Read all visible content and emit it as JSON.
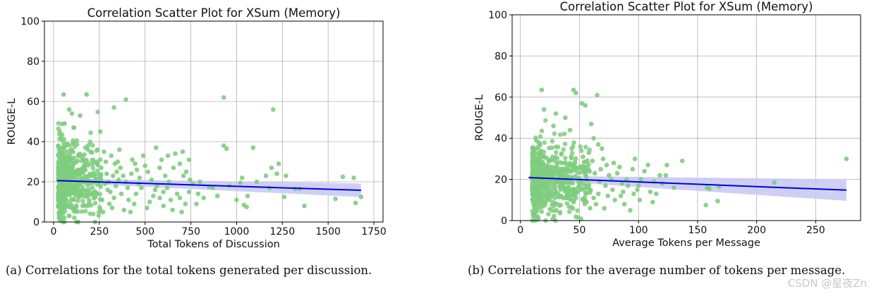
{
  "chart_data": [
    {
      "type": "scatter",
      "title": "Correlation Scatter Plot for XSum (Memory)",
      "xlabel": "Total Tokens of Discussion",
      "ylabel": "ROUGE-L",
      "xlim": [
        -50,
        1800
      ],
      "ylim": [
        0,
        100
      ],
      "xticks": [
        0,
        250,
        500,
        750,
        1000,
        1250,
        1500,
        1750
      ],
      "yticks": [
        0,
        20,
        40,
        60,
        80,
        100
      ],
      "grid": true,
      "point_color": "#7fcc7f",
      "regression": {
        "color": "#0000dd",
        "band_color": "#c7c7f5",
        "start": [
          20,
          20.6
        ],
        "end": [
          1680,
          15.8
        ],
        "band_half_start": 1.0,
        "band_half_end": 3.4
      },
      "cluster": {
        "x_range": [
          25,
          260
        ],
        "y_center": 21,
        "y_spread": 9,
        "count": 620
      },
      "points": [
        [
          55,
          63.5
        ],
        [
          180,
          63.5
        ],
        [
          395,
          61
        ],
        [
          930,
          62
        ],
        [
          1200,
          56
        ],
        [
          330,
          57
        ],
        [
          85,
          56
        ],
        [
          100,
          54
        ],
        [
          145,
          53
        ],
        [
          60,
          49
        ],
        [
          110,
          47
        ],
        [
          255,
          45
        ],
        [
          930,
          38
        ],
        [
          945,
          36.5
        ],
        [
          1090,
          37
        ],
        [
          1190,
          27
        ],
        [
          1230,
          29
        ],
        [
          1270,
          23
        ],
        [
          1320,
          16.5
        ],
        [
          1345,
          16.5
        ],
        [
          1540,
          11.5
        ],
        [
          1580,
          22.5
        ],
        [
          1640,
          22
        ],
        [
          1680,
          12.5
        ],
        [
          1650,
          9.5
        ],
        [
          1040,
          8.5
        ],
        [
          1055,
          7.5
        ],
        [
          1060,
          13
        ],
        [
          1370,
          8
        ],
        [
          1260,
          12.5
        ],
        [
          1020,
          19.5
        ],
        [
          1030,
          22
        ],
        [
          870,
          17
        ],
        [
          895,
          13
        ],
        [
          705,
          35
        ],
        [
          665,
          34
        ],
        [
          625,
          33
        ],
        [
          560,
          37
        ],
        [
          590,
          31
        ],
        [
          655,
          27
        ],
        [
          710,
          23
        ],
        [
          745,
          21
        ],
        [
          760,
          19
        ],
        [
          790,
          14
        ],
        [
          820,
          12
        ],
        [
          780,
          9
        ],
        [
          740,
          15
        ],
        [
          720,
          9
        ],
        [
          700,
          5
        ],
        [
          650,
          6
        ],
        [
          640,
          11
        ],
        [
          600,
          8
        ],
        [
          580,
          12
        ],
        [
          555,
          16
        ],
        [
          535,
          21
        ],
        [
          515,
          25
        ],
        [
          500,
          28
        ],
        [
          490,
          33
        ],
        [
          470,
          22
        ],
        [
          450,
          14
        ],
        [
          440,
          9
        ],
        [
          420,
          5
        ],
        [
          405,
          17
        ],
        [
          395,
          20
        ],
        [
          380,
          23
        ],
        [
          365,
          27
        ],
        [
          350,
          30
        ],
        [
          340,
          18
        ],
        [
          330,
          12
        ],
        [
          320,
          7
        ],
        [
          310,
          15
        ],
        [
          300,
          20
        ],
        [
          290,
          24
        ],
        [
          285,
          30
        ],
        [
          275,
          35
        ],
        [
          265,
          11
        ],
        [
          260,
          27
        ],
        [
          690,
          29
        ],
        [
          610,
          23
        ],
        [
          565,
          18
        ],
        [
          525,
          10
        ],
        [
          480,
          17
        ],
        [
          455,
          26
        ],
        [
          430,
          31
        ],
        [
          410,
          11
        ],
        [
          385,
          6
        ],
        [
          370,
          14
        ],
        [
          355,
          21
        ],
        [
          345,
          25
        ],
        [
          335,
          29
        ],
        [
          315,
          33
        ],
        [
          305,
          9
        ],
        [
          295,
          16
        ],
        [
          280,
          19
        ],
        [
          270,
          5
        ],
        [
          620,
          17
        ],
        [
          675,
          14
        ],
        [
          725,
          25
        ],
        [
          800,
          20
        ],
        [
          850,
          17.5
        ],
        [
          960,
          18
        ],
        [
          1000,
          11
        ],
        [
          1110,
          20
        ],
        [
          1160,
          23
        ],
        [
          1220,
          24
        ],
        [
          1180,
          17
        ],
        [
          580,
          27
        ],
        [
          545,
          13
        ],
        [
          510,
          7
        ],
        [
          465,
          19
        ],
        [
          425,
          24
        ],
        [
          360,
          36
        ],
        [
          740,
          31
        ],
        [
          690,
          12
        ],
        [
          630,
          20
        ],
        [
          600,
          15
        ],
        [
          445,
          29
        ],
        [
          325,
          23
        ]
      ]
    },
    {
      "type": "scatter",
      "title": "Correlation Scatter Plot for XSum (Memory)",
      "xlabel": "Average Tokens per Message",
      "ylabel": "ROUGE-L",
      "xlim": [
        -7,
        288
      ],
      "ylim": [
        0,
        100
      ],
      "xticks": [
        0,
        50,
        100,
        150,
        200,
        250
      ],
      "yticks": [
        0,
        20,
        40,
        60,
        80,
        100
      ],
      "grid": true,
      "point_color": "#7fcc7f",
      "regression": {
        "color": "#0000dd",
        "band_color": "#c7c7f5",
        "start": [
          7,
          20.9
        ],
        "end": [
          276,
          14.8
        ],
        "band_half_start": 1.0,
        "band_half_end": 5.2
      },
      "cluster": {
        "x_range": [
          10,
          60
        ],
        "y_center": 20,
        "y_spread": 9,
        "count": 620
      },
      "points": [
        [
          18,
          63.5
        ],
        [
          45,
          63.5
        ],
        [
          47,
          62
        ],
        [
          65,
          61
        ],
        [
          55,
          56
        ],
        [
          52,
          57
        ],
        [
          20,
          54
        ],
        [
          30,
          52
        ],
        [
          38,
          50
        ],
        [
          60,
          47
        ],
        [
          28,
          46
        ],
        [
          42,
          44
        ],
        [
          137,
          29
        ],
        [
          124,
          27
        ],
        [
          118,
          22
        ],
        [
          105,
          24
        ],
        [
          95,
          25
        ],
        [
          90,
          20
        ],
        [
          86,
          18
        ],
        [
          100,
          17
        ],
        [
          110,
          14
        ],
        [
          112,
          9
        ],
        [
          115,
          13
        ],
        [
          96,
          13
        ],
        [
          80,
          10
        ],
        [
          78,
          15
        ],
        [
          75,
          22
        ],
        [
          73,
          27
        ],
        [
          70,
          30
        ],
        [
          68,
          25
        ],
        [
          66,
          13
        ],
        [
          64,
          8
        ],
        [
          62,
          11
        ],
        [
          59,
          6
        ],
        [
          88,
          8
        ],
        [
          93,
          5
        ],
        [
          101,
          10
        ],
        [
          157,
          7.5
        ],
        [
          158,
          16
        ],
        [
          160,
          15.5
        ],
        [
          167,
          9.5
        ],
        [
          168,
          16.5
        ],
        [
          215,
          18.5
        ],
        [
          276,
          30
        ],
        [
          130,
          16
        ],
        [
          120,
          18
        ],
        [
          84,
          26
        ],
        [
          77,
          20
        ],
        [
          72,
          17
        ],
        [
          69,
          35
        ],
        [
          67,
          19
        ],
        [
          63,
          23
        ],
        [
          61,
          29
        ],
        [
          58,
          33
        ],
        [
          57,
          16
        ],
        [
          56,
          9
        ],
        [
          54,
          26
        ],
        [
          53,
          31
        ],
        [
          102,
          20
        ],
        [
          108,
          27
        ],
        [
          97,
          30
        ],
        [
          85,
          12
        ],
        [
          82,
          23
        ],
        [
          79,
          28
        ],
        [
          74,
          12
        ],
        [
          71,
          6
        ],
        [
          66,
          37
        ],
        [
          62,
          40
        ],
        [
          123,
          22
        ],
        [
          113,
          19
        ],
        [
          99,
          15
        ],
        [
          91,
          17
        ],
        [
          87,
          14
        ]
      ]
    }
  ],
  "captions": {
    "a": "(a)  Correlations for the total tokens generated per discussion.",
    "b": "(b)  Correlations for the average number of tokens per message."
  },
  "watermark": "CSDN @星夜Zn"
}
